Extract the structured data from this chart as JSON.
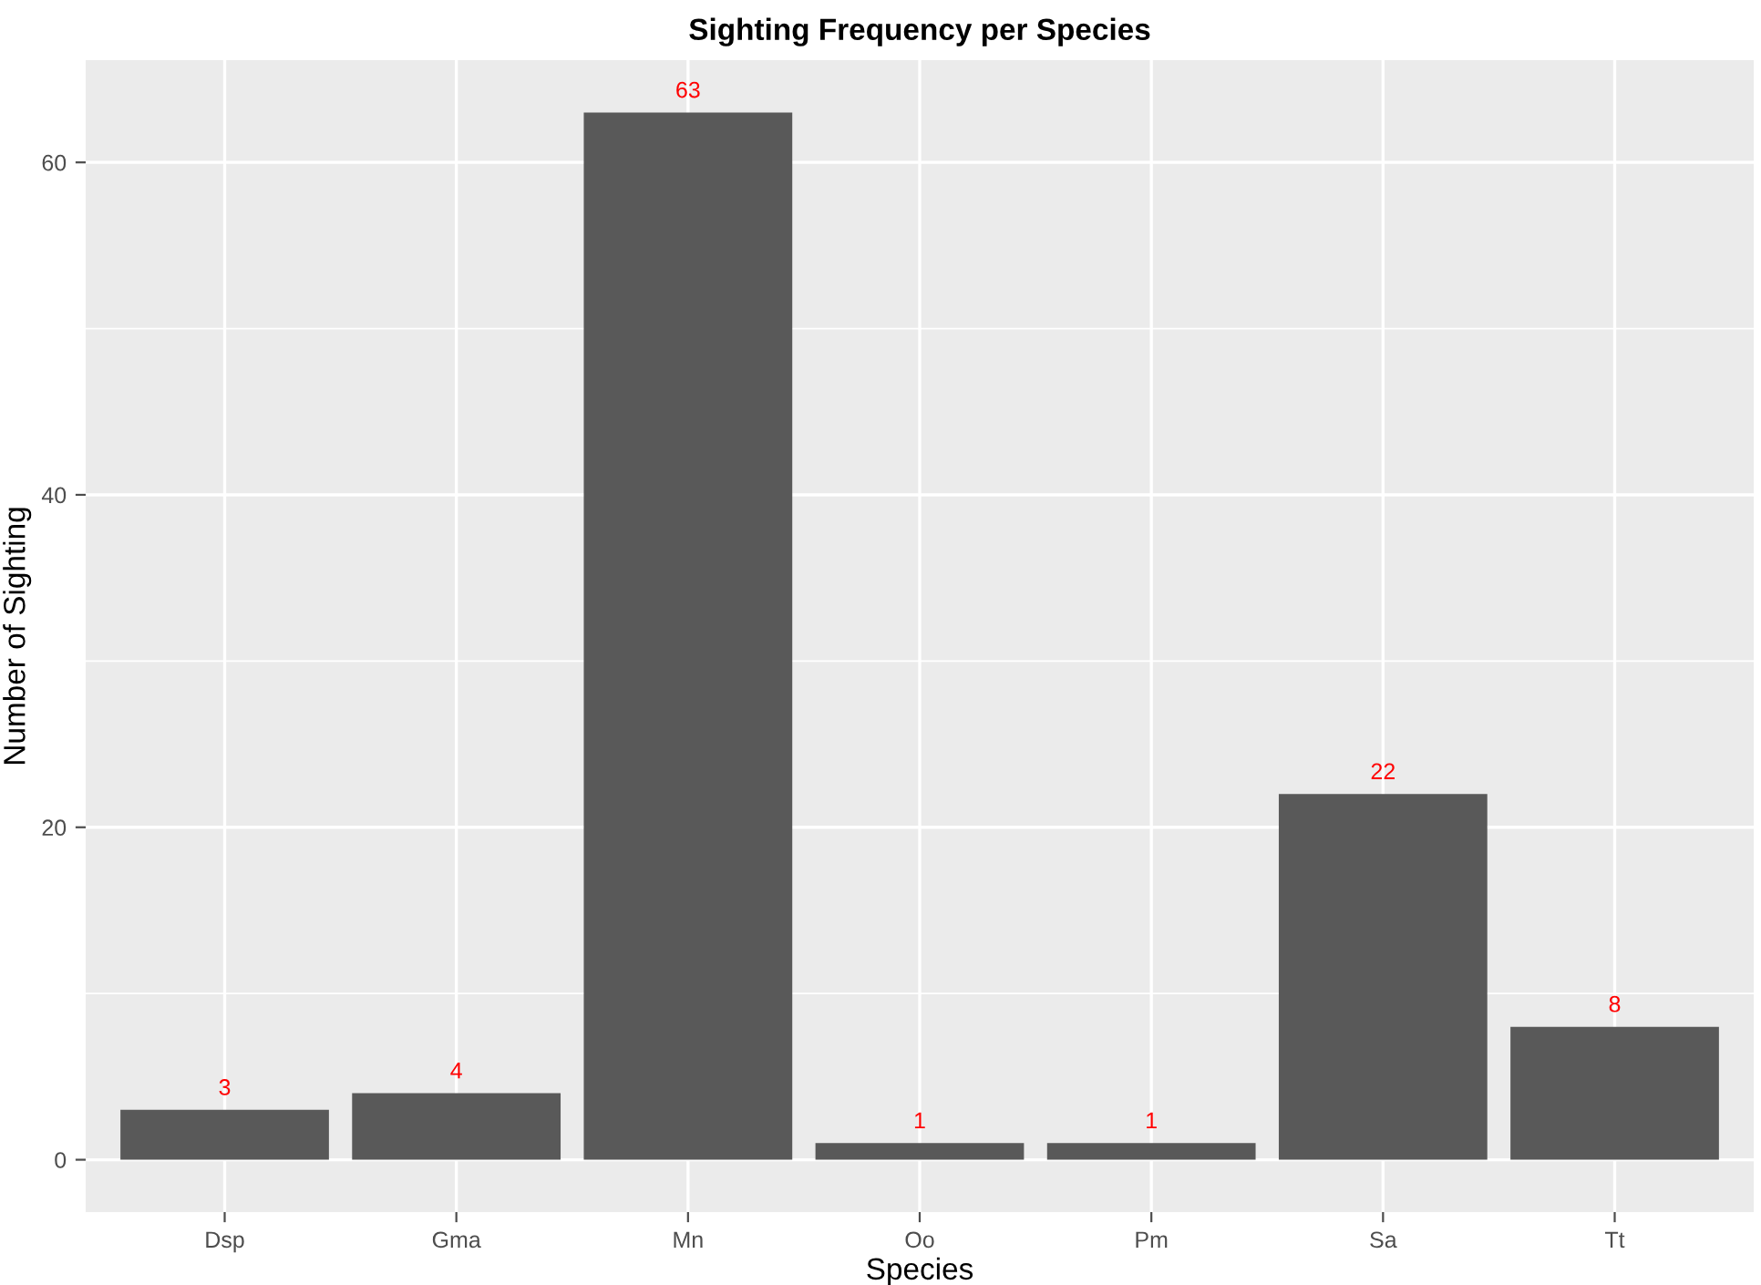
{
  "chart_data": {
    "type": "bar",
    "title": "Sighting Frequency per Species",
    "xlabel": "Species",
    "ylabel": "Number of Sighting",
    "categories": [
      "Dsp",
      "Gma",
      "Mn",
      "Oo",
      "Pm",
      "Sa",
      "Tt"
    ],
    "values": [
      3,
      4,
      63,
      1,
      1,
      22,
      8
    ],
    "color": "#595959",
    "ylim": [
      -3.15,
      66.15
    ],
    "yticks": [
      0,
      20,
      40,
      60
    ],
    "grid": true,
    "data_labels": true
  }
}
